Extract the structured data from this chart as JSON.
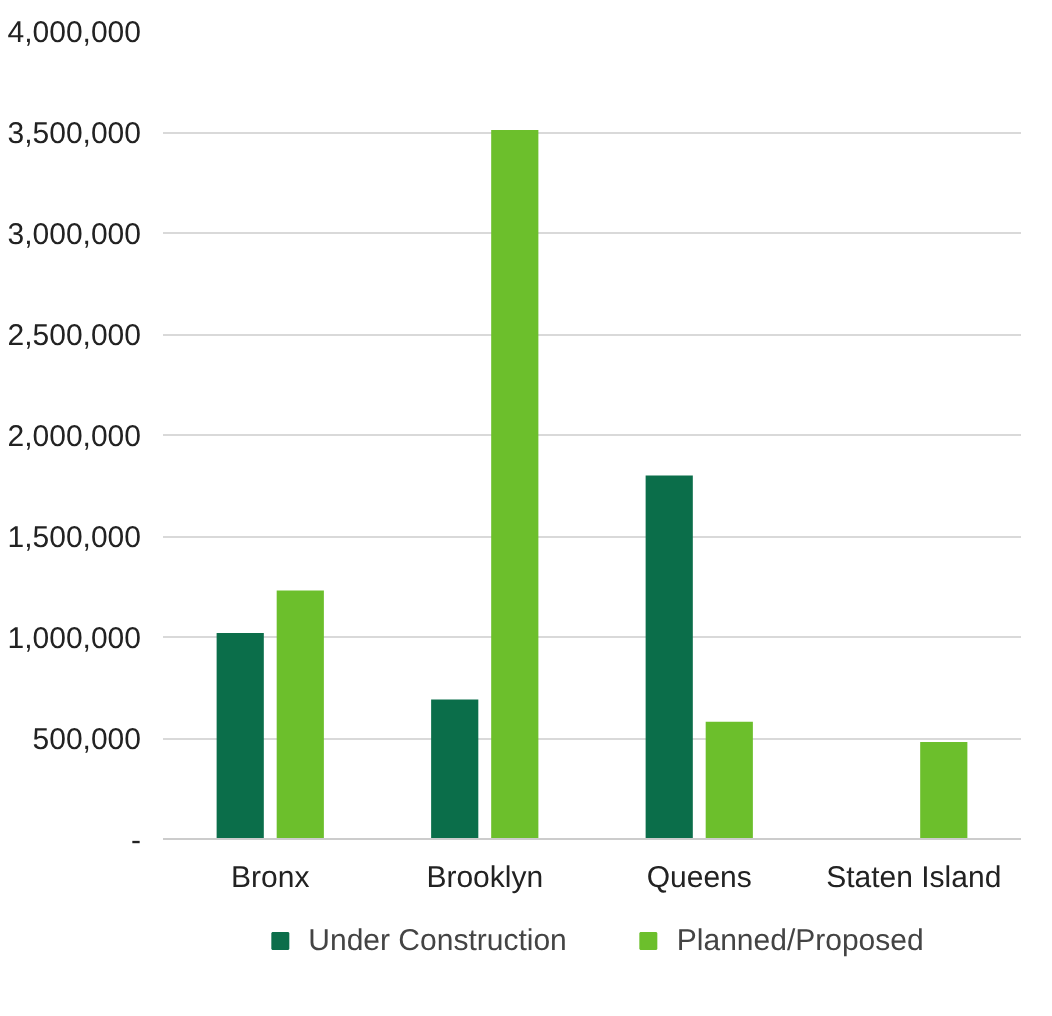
{
  "chart_data": {
    "type": "bar",
    "categories": [
      "Bronx",
      "Brooklyn",
      "Queens",
      "Staten Island"
    ],
    "series": [
      {
        "name": "Under Construction",
        "color": "#0b6e4a",
        "values": [
          1020000,
          690000,
          1800000,
          null
        ]
      },
      {
        "name": "Planned/Proposed",
        "color": "#6cbf2c",
        "values": [
          1230000,
          3510000,
          580000,
          480000
        ]
      }
    ],
    "ylim": [
      0,
      4000000
    ],
    "yticks": [
      {
        "value": 0,
        "label": "-"
      },
      {
        "value": 500000,
        "label": "500,000"
      },
      {
        "value": 1000000,
        "label": "1,000,000"
      },
      {
        "value": 1500000,
        "label": "1,500,000"
      },
      {
        "value": 2000000,
        "label": "2,000,000"
      },
      {
        "value": 2500000,
        "label": "2,500,000"
      },
      {
        "value": 3000000,
        "label": "3,000,000"
      },
      {
        "value": 3500000,
        "label": "3,500,000"
      },
      {
        "value": 4000000,
        "label": "4,000,000"
      }
    ],
    "grid": "y",
    "legend": "bottom"
  }
}
